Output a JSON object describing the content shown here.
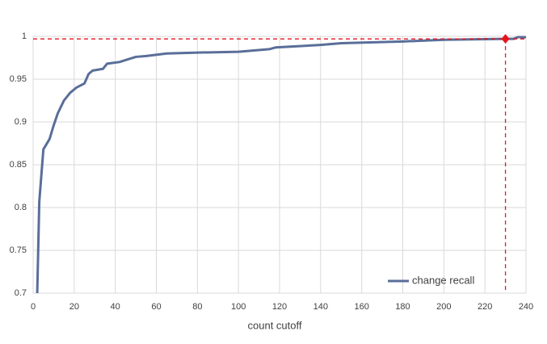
{
  "chart_data": {
    "type": "line",
    "x_label": "count cutoff",
    "x": [
      2,
      3,
      5,
      8,
      10,
      12,
      15,
      18,
      21,
      25,
      27,
      29,
      34,
      36,
      42,
      50,
      55,
      65,
      80,
      100,
      115,
      118,
      140,
      150,
      180,
      200,
      230,
      234,
      236,
      240
    ],
    "series": [
      {
        "name": "change recall",
        "color": "#5a6e99",
        "values": [
          0.7,
          0.807,
          0.868,
          0.88,
          0.896,
          0.91,
          0.925,
          0.934,
          0.94,
          0.945,
          0.956,
          0.96,
          0.962,
          0.968,
          0.97,
          0.976,
          0.977,
          0.98,
          0.981,
          0.982,
          0.985,
          0.987,
          0.99,
          0.992,
          0.994,
          0.996,
          0.997,
          0.997,
          0.999,
          0.999
        ]
      }
    ],
    "xlim": [
      0,
      240
    ],
    "xticks": [
      0,
      20,
      40,
      60,
      80,
      100,
      120,
      140,
      160,
      180,
      200,
      220,
      240
    ],
    "ylim": [
      0.7,
      1
    ],
    "yticks": [
      0.7,
      0.75,
      0.8,
      0.85,
      0.9,
      0.95,
      1
    ],
    "grid": true,
    "legend": "bottom-right",
    "marker": {
      "x": 230,
      "y": 0.997,
      "color": "#e8141e"
    }
  }
}
